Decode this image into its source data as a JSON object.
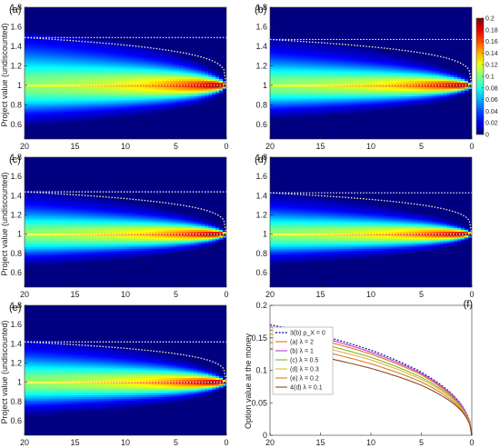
{
  "chart_data": [
    {
      "type": "heatmap",
      "panel_label": "(a)",
      "ylabel": "Project value (undiscounted)",
      "xlabel": "",
      "xlim": [
        20,
        0
      ],
      "ylim": [
        0.45,
        1.8
      ],
      "x_ticks": [
        20,
        15,
        10,
        5,
        0
      ],
      "y_ticks": [
        0.6,
        0.8,
        1,
        1.2,
        1.4,
        1.6,
        1.8
      ],
      "spread": 1.0,
      "upper_line": 1.49,
      "lower_line": 1.0
    },
    {
      "type": "heatmap",
      "panel_label": "(b)",
      "ylabel": "",
      "xlabel": "",
      "xlim": [
        20,
        0
      ],
      "ylim": [
        0.45,
        1.8
      ],
      "x_ticks": [
        20,
        15,
        10,
        5,
        0
      ],
      "y_ticks": [
        0.6,
        0.8,
        1,
        1.2,
        1.4,
        1.6,
        1.8
      ],
      "spread": 0.8,
      "upper_line": 1.47,
      "lower_line": 1.0,
      "colorbar": {
        "range": [
          0,
          0.2
        ],
        "ticks": [
          "0",
          "0.02",
          "0.04",
          "0.06",
          "0.08",
          "0.1",
          "0.12",
          "0.14",
          "0.16",
          "0.18",
          "0.2"
        ]
      }
    },
    {
      "type": "heatmap",
      "panel_label": "(c)",
      "ylabel": "Project value (undiscounted)",
      "xlabel": "",
      "xlim": [
        20,
        0
      ],
      "ylim": [
        0.45,
        1.8
      ],
      "x_ticks": [
        20,
        15,
        10,
        5,
        0
      ],
      "y_ticks": [
        0.6,
        0.8,
        1,
        1.2,
        1.4,
        1.6,
        1.8
      ],
      "spread": 0.75,
      "upper_line": 1.44,
      "lower_line": 1.0
    },
    {
      "type": "heatmap",
      "panel_label": "(d)",
      "ylabel": "",
      "xlabel": "",
      "xlim": [
        20,
        0
      ],
      "ylim": [
        0.45,
        1.8
      ],
      "x_ticks": [
        20,
        15,
        10,
        5,
        0
      ],
      "y_ticks": [
        0.6,
        0.8,
        1,
        1.2,
        1.4,
        1.6,
        1.8
      ],
      "spread": 0.7,
      "upper_line": 1.43,
      "lower_line": 1.0
    },
    {
      "type": "heatmap",
      "panel_label": "(e)",
      "ylabel": "Project value (undiscounted)",
      "xlabel": "Time to expiry",
      "xlim": [
        20,
        0
      ],
      "ylim": [
        0.45,
        1.8
      ],
      "x_ticks": [
        20,
        15,
        10,
        5,
        0
      ],
      "y_ticks": [
        0.6,
        0.8,
        1,
        1.2,
        1.4,
        1.6,
        1.8
      ],
      "spread": 0.8,
      "upper_line": 1.42,
      "lower_line": 1.0
    },
    {
      "type": "line",
      "panel_label": "(f)",
      "ylabel": "Option value at the money",
      "xlabel": "Time to expiry",
      "xlim": [
        20,
        0
      ],
      "ylim": [
        0,
        0.2
      ],
      "x_ticks": [
        20,
        15,
        10,
        5,
        0
      ],
      "y_ticks": [
        0,
        0.05,
        0.1,
        0.15,
        0.2
      ],
      "y_tick_labels": [
        "0",
        "0.05",
        "0.1",
        "0.15",
        "0.2"
      ],
      "x": [
        20,
        15,
        10,
        5,
        2,
        1,
        0
      ],
      "series": [
        {
          "name": "3(b) ρ_X = 0",
          "color": "#2a2aa8",
          "dashed": true,
          "values": [
            0.17,
            0.154,
            0.131,
            0.097,
            0.064,
            0.046,
            0.0
          ]
        },
        {
          "name": "(a) λ = 2",
          "color": "#e8701c",
          "values": [
            0.162,
            0.147,
            0.125,
            0.093,
            0.061,
            0.044,
            0.0
          ]
        },
        {
          "name": "(b) λ = 1",
          "color": "#c23ad6",
          "values": [
            0.167,
            0.151,
            0.128,
            0.095,
            0.063,
            0.045,
            0.0
          ]
        },
        {
          "name": "(c) λ = 0.5",
          "color": "#7ab82e",
          "values": [
            0.156,
            0.141,
            0.12,
            0.089,
            0.059,
            0.042,
            0.0
          ]
        },
        {
          "name": "(d) λ = 0.3",
          "color": "#e6b43a",
          "values": [
            0.15,
            0.136,
            0.116,
            0.086,
            0.057,
            0.041,
            0.0
          ]
        },
        {
          "name": "(e) λ = 0.2",
          "color": "#cf7f2e",
          "values": [
            0.143,
            0.13,
            0.11,
            0.082,
            0.054,
            0.039,
            0.0
          ]
        },
        {
          "name": "4(d) λ = 0.1",
          "color": "#8b4a22",
          "values": [
            0.133,
            0.121,
            0.103,
            0.077,
            0.051,
            0.037,
            0.0
          ]
        }
      ]
    }
  ]
}
